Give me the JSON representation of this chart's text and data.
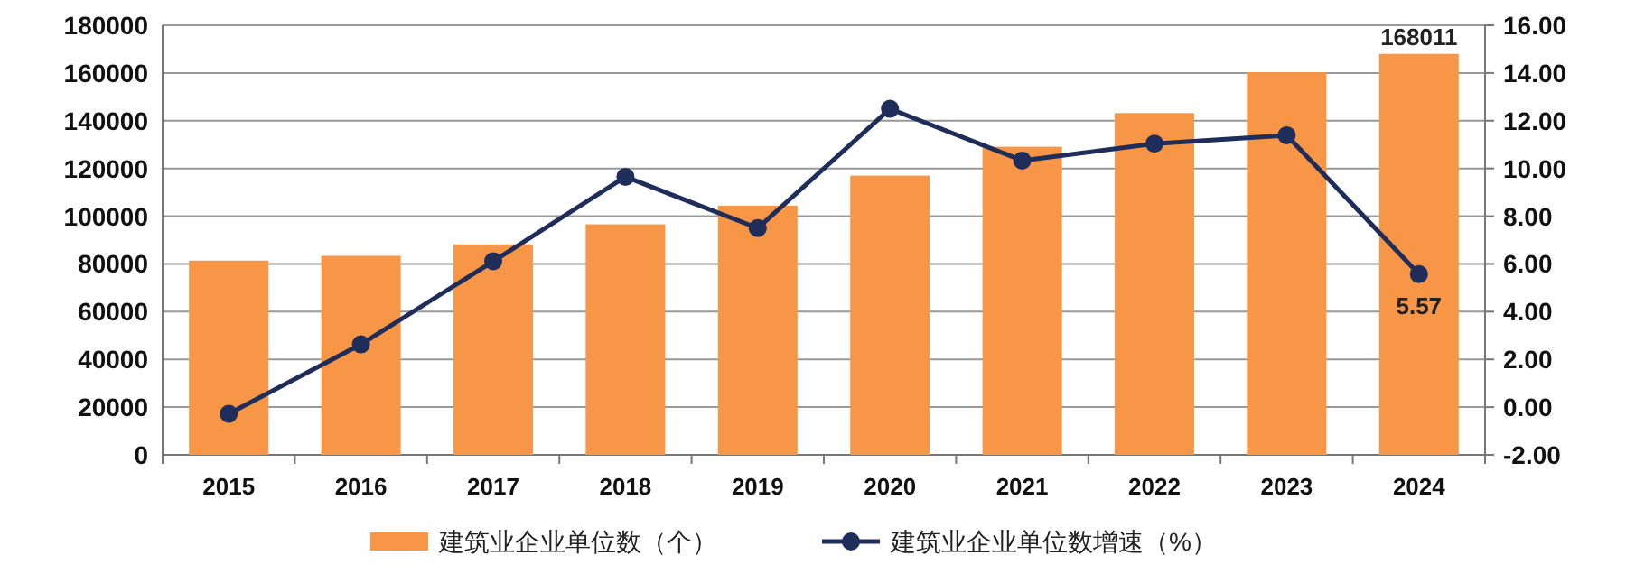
{
  "chart_data": {
    "type": "bar",
    "categories": [
      "2015",
      "2016",
      "2017",
      "2018",
      "2019",
      "2020",
      "2021",
      "2022",
      "2023",
      "2024"
    ],
    "series": [
      {
        "name": "建筑业企业单位数（个）",
        "color": "#f79646",
        "values": [
          81400,
          83400,
          88200,
          96600,
          104400,
          117000,
          129100,
          143200,
          160300,
          168011
        ],
        "value_labels": [
          null,
          null,
          null,
          null,
          null,
          null,
          null,
          null,
          null,
          "168011"
        ]
      },
      {
        "name": "建筑业企业单位数增速（%）",
        "type": "line",
        "axis": "y2",
        "color": "#1f2d5a",
        "marker": "circle",
        "values": [
          -0.28,
          2.63,
          6.11,
          9.65,
          7.5,
          12.5,
          10.33,
          11.04,
          11.39,
          5.57
        ],
        "value_labels": [
          null,
          null,
          null,
          null,
          null,
          null,
          null,
          null,
          null,
          "5.57"
        ]
      }
    ],
    "ylim": [
      0,
      180000
    ],
    "yticks": [
      0,
      20000,
      40000,
      60000,
      80000,
      100000,
      120000,
      140000,
      160000,
      180000
    ],
    "y2lim": [
      -2,
      16
    ],
    "y2ticks": [
      {
        "value": -2,
        "label": "-2.00"
      },
      {
        "value": 0,
        "label": "0.00"
      },
      {
        "value": 2,
        "label": "2.00"
      },
      {
        "value": 4,
        "label": "4.00"
      },
      {
        "value": 6,
        "label": "6.00"
      },
      {
        "value": 8,
        "label": "8.00"
      },
      {
        "value": 10,
        "label": "10.00"
      },
      {
        "value": 12,
        "label": "12.00"
      },
      {
        "value": 14,
        "label": "14.00"
      },
      {
        "value": 16,
        "label": "16.00"
      }
    ],
    "grid": "y",
    "legend": "bottom"
  }
}
